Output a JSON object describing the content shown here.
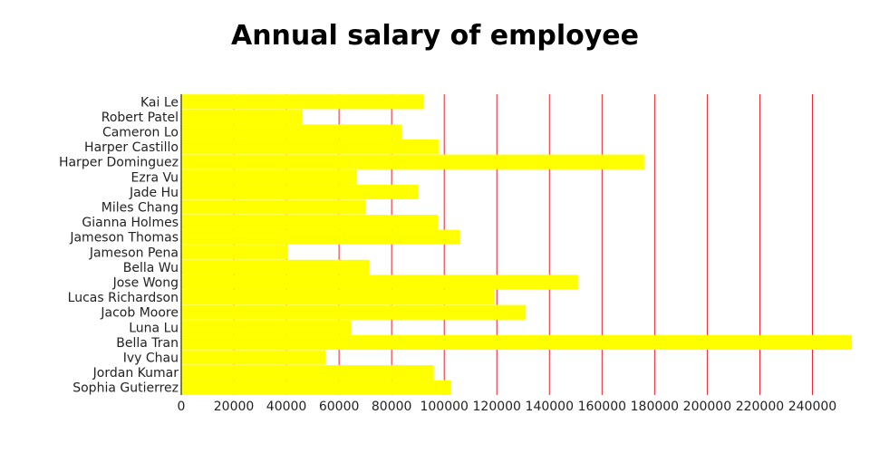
{
  "chart_data": {
    "type": "bar",
    "orientation": "horizontal",
    "title": "Annual salary of employee",
    "xlabel": "",
    "ylabel": "",
    "xlim": [
      0,
      255000
    ],
    "x_ticks": [
      "0",
      "20000",
      "40000",
      "60000",
      "80000",
      "100000",
      "120000",
      "140000",
      "160000",
      "180000",
      "200000",
      "220000",
      "240000"
    ],
    "grid": "vertical",
    "colors": {
      "bar": "#ffff00",
      "grid": "#e8212b",
      "axis": "#000000"
    },
    "categories": [
      "Kai Le",
      "Robert Patel",
      "Cameron Lo",
      "Harper Castillo",
      "Harper Dominguez",
      "Ezra Vu",
      "Jade Hu",
      "Miles Chang",
      "Gianna Holmes",
      "Jameson Thomas",
      "Jameson Pena",
      "Bella Wu",
      "Jose Wong",
      "Lucas Richardson",
      "Jacob Moore",
      "Luna Lu",
      "Bella Tran",
      "Ivy Chau",
      "Jordan Kumar",
      "Sophia Gutierrez"
    ],
    "values": [
      92000,
      46000,
      84000,
      98000,
      176000,
      66500,
      90000,
      70000,
      97500,
      106000,
      40500,
      71500,
      151000,
      119000,
      131000,
      64500,
      255000,
      55000,
      96000,
      102500
    ]
  }
}
